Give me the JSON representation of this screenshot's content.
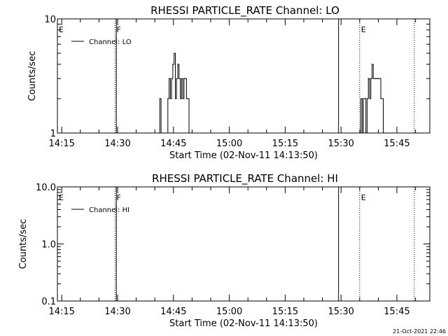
{
  "chart_data": [
    {
      "type": "line",
      "title": "RHESSI PARTICLE_RATE Channel: LO",
      "xlabel": "Start Time (02-Nov-11 14:13:50)",
      "ylabel": "Counts/sec",
      "yscale": "log",
      "xlim": [
        "14:13:50",
        "15:53:50"
      ],
      "ylim": [
        1,
        10
      ],
      "x_ticks": [
        "14:15",
        "14:30",
        "14:45",
        "15:00",
        "15:15",
        "15:30",
        "15:45"
      ],
      "y_ticks": [
        "1",
        "10"
      ],
      "legend": {
        "entries": [
          "Channel: LO"
        ],
        "placement": "top-left"
      },
      "markers": [
        {
          "label": "E",
          "time": "14:13:50",
          "style": "solid"
        },
        {
          "label": "F",
          "time": "14:29:20",
          "style": "dotted"
        },
        {
          "label": "",
          "time": "14:29:40",
          "style": "solid"
        },
        {
          "label": "",
          "time": "15:29:20",
          "style": "solid"
        },
        {
          "label": "E",
          "time": "15:35:00",
          "style": "dotted"
        },
        {
          "label": "",
          "time": "15:49:40",
          "style": "dotted"
        }
      ],
      "series": [
        {
          "name": "Channel: LO",
          "x": [
            "14:41:00",
            "14:41:20",
            "14:41:40",
            "14:42:00",
            "14:42:20",
            "14:42:40",
            "14:43:10",
            "14:43:30",
            "14:43:50",
            "14:44:10",
            "14:44:30",
            "14:44:50",
            "14:45:10",
            "14:45:30",
            "14:45:50",
            "14:46:10",
            "14:46:30",
            "14:46:50",
            "14:47:10",
            "14:47:30",
            "14:47:50",
            "14:48:10",
            "14:48:30",
            "14:48:50",
            "14:49:10",
            "14:49:30",
            "15:35:00",
            "15:35:20",
            "15:35:40",
            "15:36:00",
            "15:36:20",
            "15:36:40",
            "15:37:00",
            "15:37:20",
            "15:37:40",
            "15:38:00",
            "15:38:20",
            "15:38:40",
            "15:39:00",
            "15:39:20",
            "15:39:40",
            "15:40:00",
            "15:40:20",
            "15:40:40",
            "15:41:00",
            "15:41:20",
            "15:41:40",
            "15:42:00"
          ],
          "y": [
            1,
            2,
            1,
            1,
            1,
            1,
            1,
            2,
            3,
            2,
            3,
            4,
            5,
            2,
            3,
            4,
            3,
            2,
            3,
            2,
            3,
            3,
            2,
            2,
            1,
            1,
            1,
            2,
            1,
            2,
            2,
            1,
            2,
            3,
            2,
            3,
            4,
            3,
            3,
            3,
            3,
            3,
            3,
            2,
            2,
            1,
            1,
            1
          ]
        }
      ]
    },
    {
      "type": "line",
      "title": "RHESSI PARTICLE_RATE Channel: HI",
      "xlabel": "Start Time (02-Nov-11 14:13:50)",
      "ylabel": "Counts/sec",
      "yscale": "log",
      "xlim": [
        "14:13:50",
        "15:53:50"
      ],
      "ylim": [
        0.1,
        10
      ],
      "x_ticks": [
        "14:15",
        "14:30",
        "14:45",
        "15:00",
        "15:15",
        "15:30",
        "15:45"
      ],
      "y_ticks": [
        "0.1",
        "1.0",
        "10.0"
      ],
      "legend": {
        "entries": [
          "Channel: HI"
        ],
        "placement": "top-left"
      },
      "markers": [
        {
          "label": "E",
          "time": "14:13:50",
          "style": "solid"
        },
        {
          "label": "F",
          "time": "14:29:20",
          "style": "dotted"
        },
        {
          "label": "",
          "time": "14:29:40",
          "style": "solid"
        },
        {
          "label": "",
          "time": "15:29:20",
          "style": "solid"
        },
        {
          "label": "E",
          "time": "15:35:00",
          "style": "dotted"
        },
        {
          "label": "",
          "time": "15:49:40",
          "style": "dotted"
        }
      ],
      "series": [
        {
          "name": "Channel: HI",
          "x": [],
          "y": []
        }
      ]
    }
  ],
  "footer": {
    "timestamp": "21-Oct-2021 22:46"
  }
}
